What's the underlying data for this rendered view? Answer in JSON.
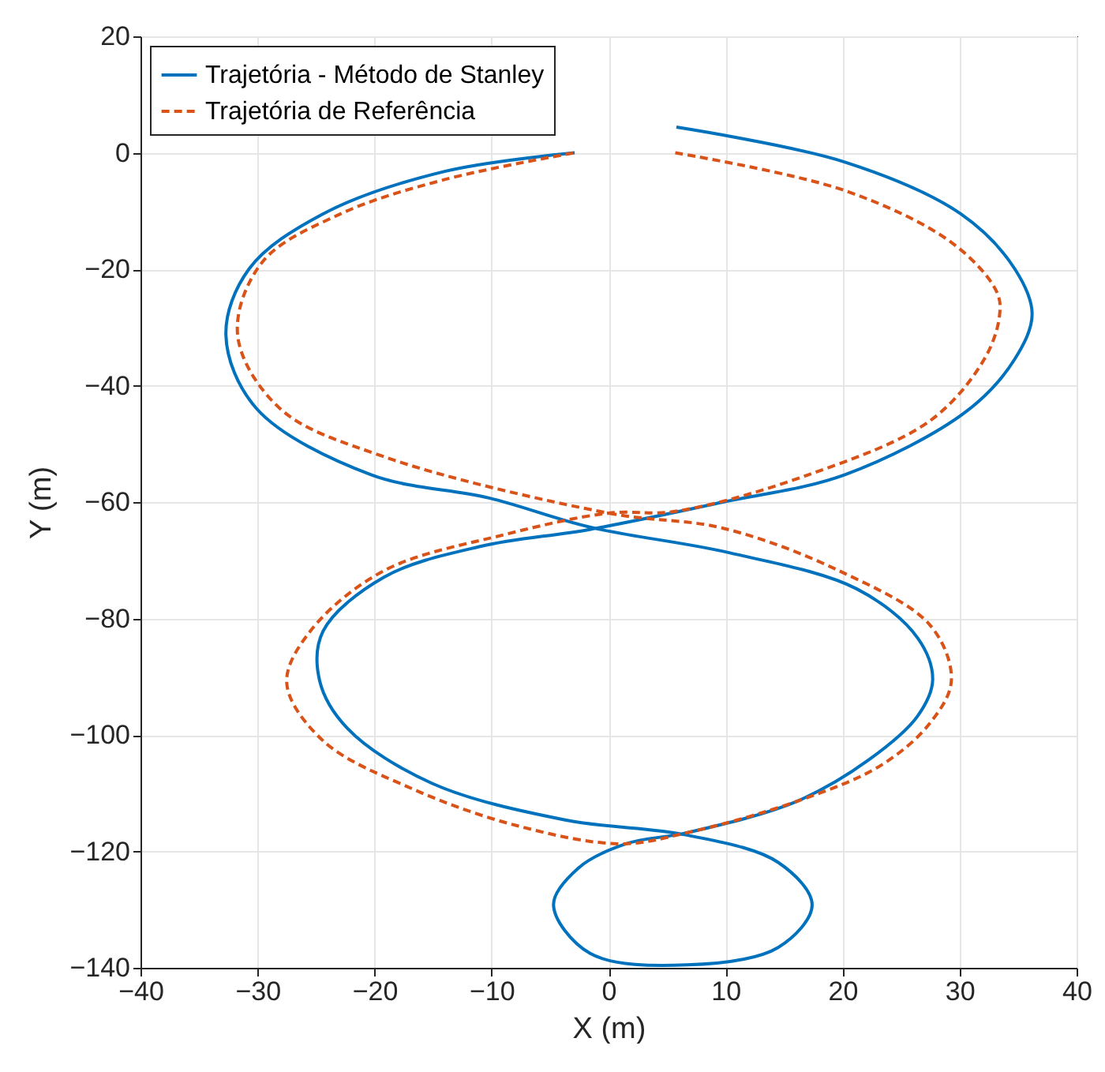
{
  "chart_data": {
    "type": "line",
    "xlabel": "X (m)",
    "ylabel": "Y (m)",
    "series": [
      {
        "name": "Trajetória - Método de Stanley",
        "color": "#0072bd",
        "line_style": "solid",
        "x": [
          5.8,
          20.2,
          30.1,
          34.7,
          36.2,
          34.7,
          30.6,
          20.2,
          9.8,
          -1.6,
          -10.9,
          -19.2,
          -24.4,
          -24.7,
          -22.3,
          -15.1,
          -3.7,
          6.7,
          14.5,
          17.4,
          14.5,
          6.7,
          -1.6,
          -4.7,
          -2.6,
          1.5,
          6.7,
          16.1,
          22.3,
          26.4,
          27.7,
          26.4,
          21.2,
          10.3,
          -1.6,
          -10.2,
          -20.3,
          -30.1,
          -32.7,
          -30.7,
          -24.4,
          -14.0,
          -2.9
        ],
        "values": [
          4.4,
          -1.6,
          -10.5,
          -19.9,
          -27.7,
          -35.5,
          -44.4,
          -55.3,
          -60.0,
          -64.7,
          -67.6,
          -72.9,
          -82.2,
          -90.6,
          -98.9,
          -108.3,
          -114.6,
          -117.2,
          -121.9,
          -129.2,
          -136.5,
          -139.5,
          -137.5,
          -129.2,
          -122.9,
          -118.7,
          -116.8,
          -111.4,
          -104.2,
          -96.8,
          -90.6,
          -83.3,
          -74.9,
          -68.7,
          -64.3,
          -59.3,
          -55.3,
          -43.9,
          -31.3,
          -19.9,
          -10.5,
          -3.2,
          0
        ]
      },
      {
        "name": "Trajetória de Referência",
        "color": "#d95319",
        "line_style": "dashed",
        "x": [
          5.7,
          20.2,
          29.5,
          33.2,
          33.4,
          32.1,
          27.5,
          17.1,
          5.7,
          0,
          -8.9,
          -19.2,
          -25.5,
          -27.5,
          -24.4,
          -16.6,
          -7.8,
          1.0,
          6.7,
          16.1,
          23.3,
          27.5,
          29.3,
          27.5,
          19.7,
          9.8,
          0,
          -19.2,
          -28.1,
          -31.7,
          -29.6,
          -22.9,
          -14.0,
          -2.9
        ],
        "values": [
          0,
          -6.5,
          -15.7,
          -24.0,
          -28.2,
          -35.5,
          -46.0,
          -55.3,
          -61.6,
          -61.9,
          -65.6,
          -71.8,
          -82.2,
          -91.1,
          -101,
          -109.4,
          -115.6,
          -118.7,
          -116.8,
          -111.4,
          -105.2,
          -97.9,
          -90.6,
          -81.2,
          -71.8,
          -64.5,
          -61.9,
          -52.2,
          -43.9,
          -31.3,
          -18.8,
          -10.5,
          -4.6,
          0
        ]
      }
    ],
    "xlim": [
      -40,
      40
    ],
    "xticks": [
      -40,
      -30,
      -20,
      -10,
      0,
      10,
      20,
      30,
      40
    ],
    "ylim": [
      -140,
      20
    ],
    "yticks": [
      -140,
      -120,
      -100,
      -80,
      -60,
      -40,
      -20,
      0,
      20
    ],
    "grid": true,
    "legend": "top left"
  }
}
